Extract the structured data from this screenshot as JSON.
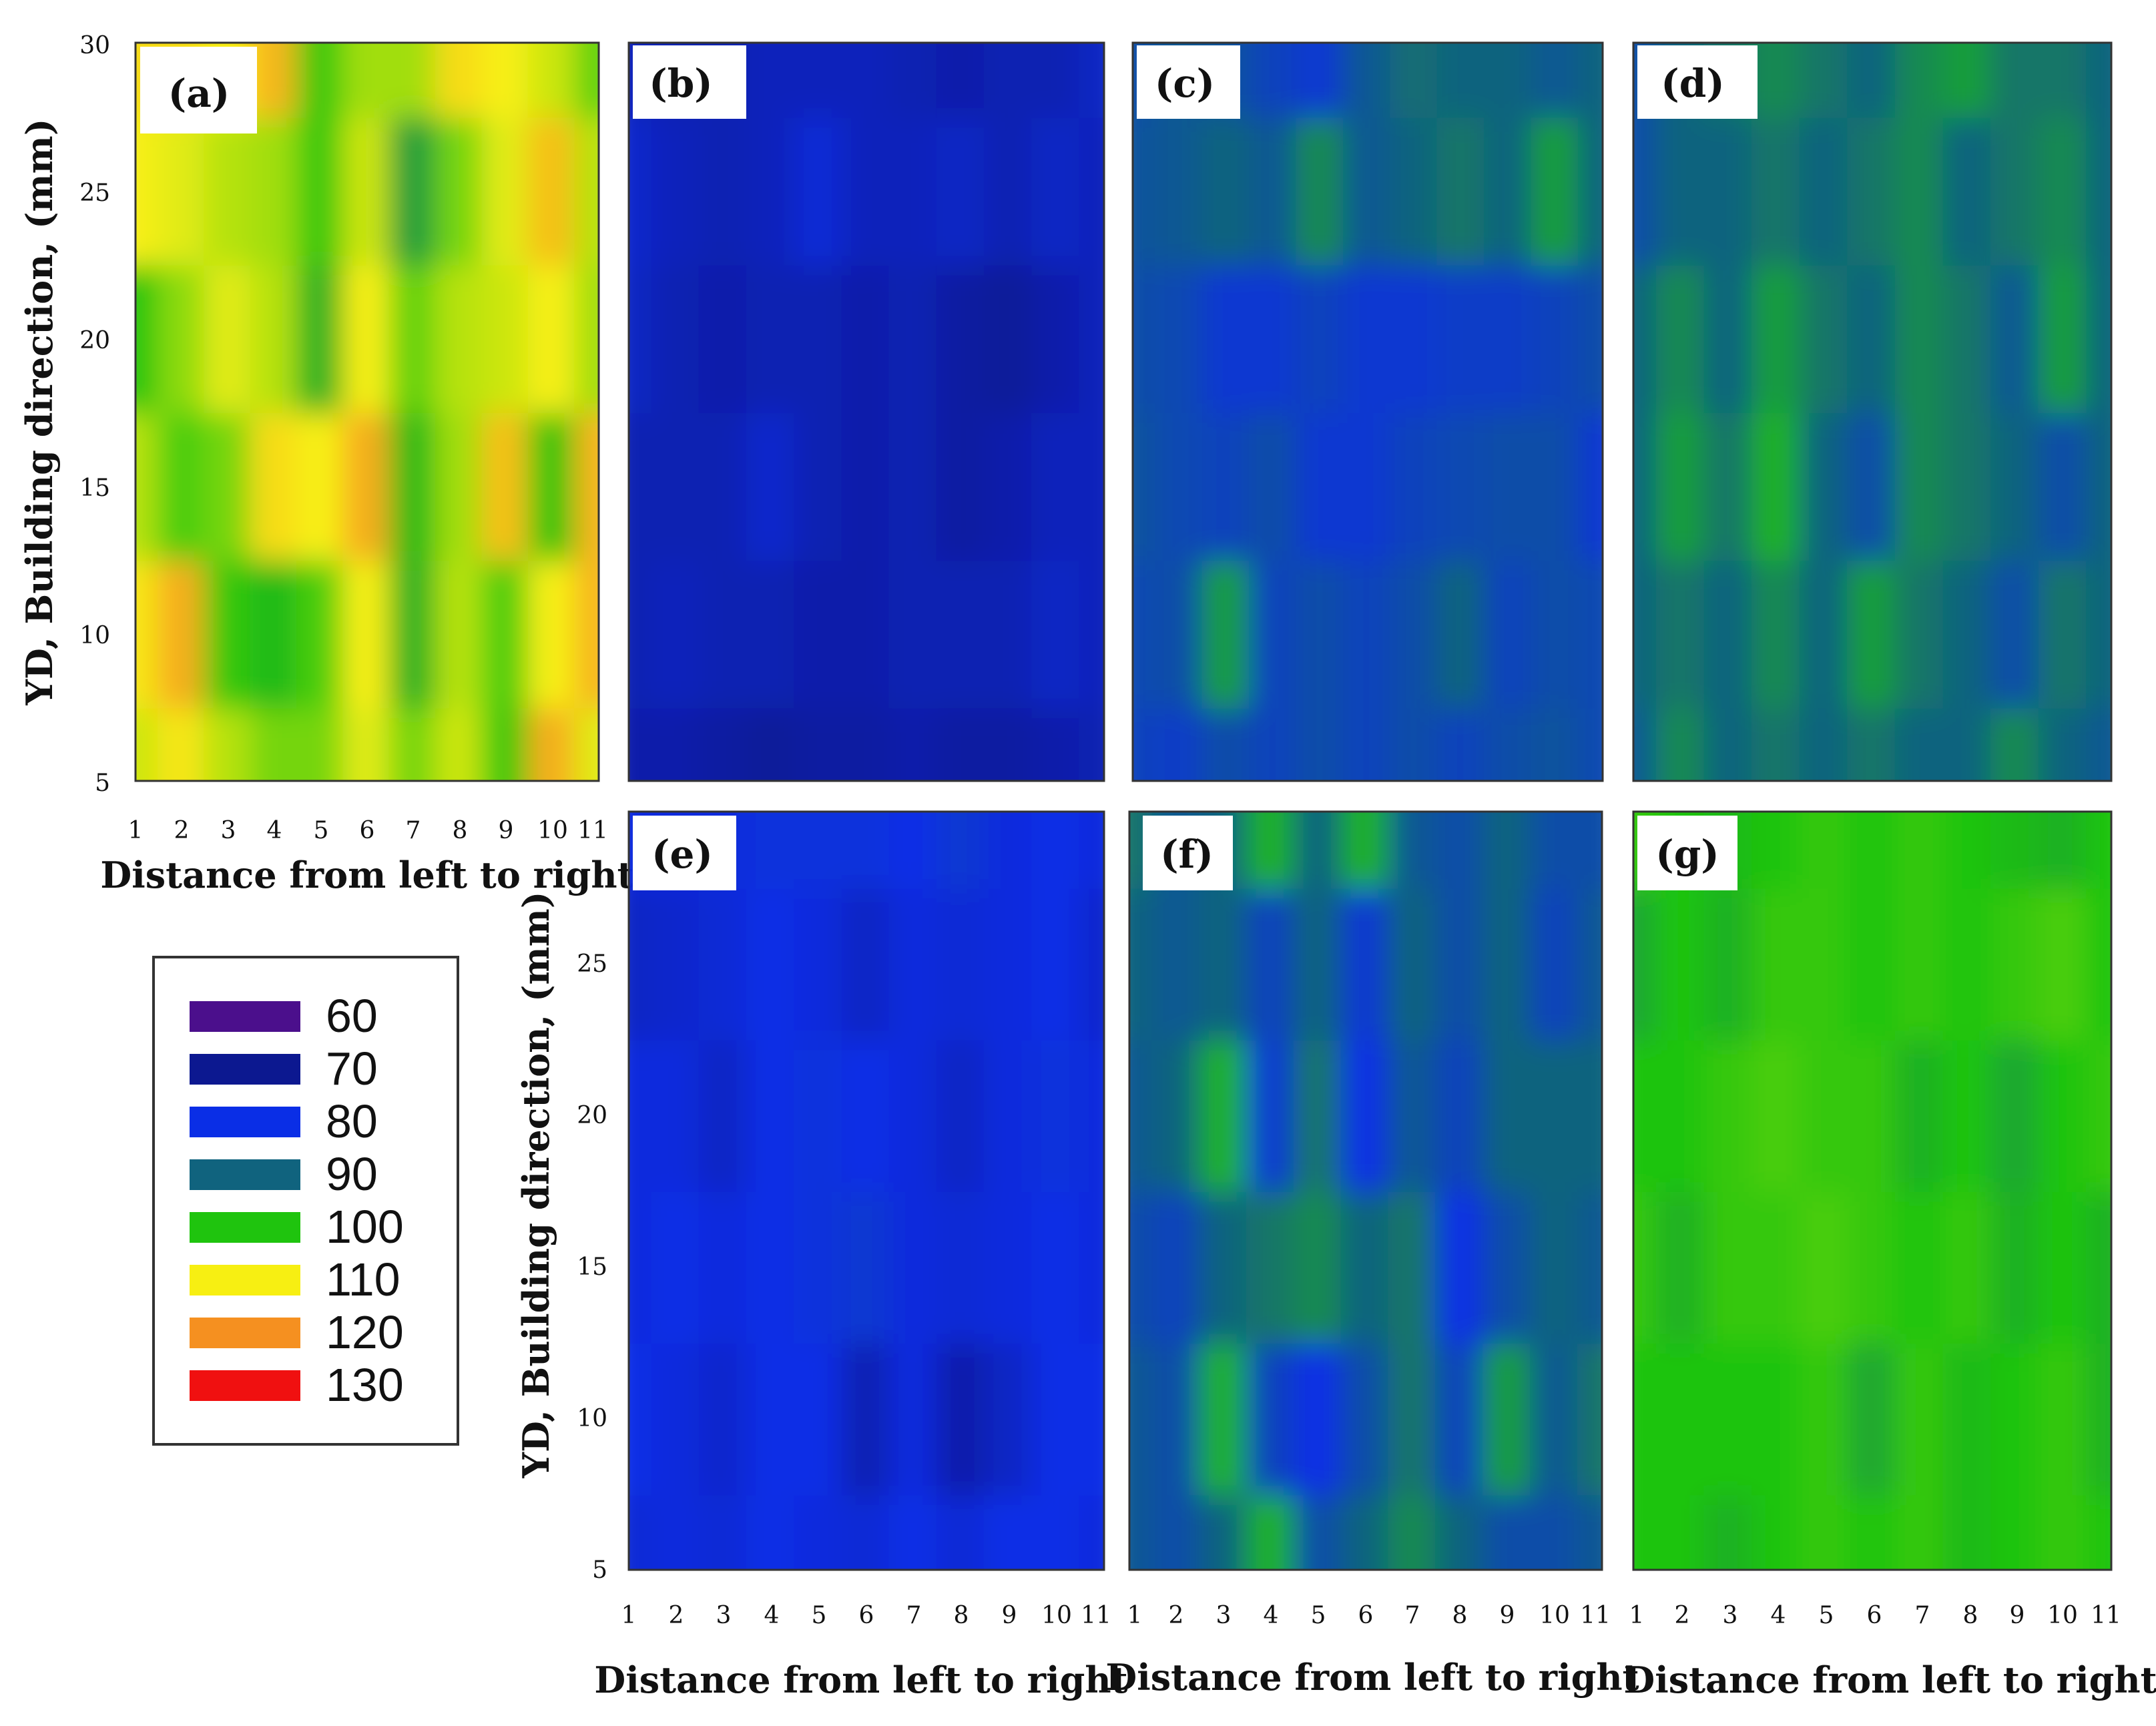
{
  "chart_data": {
    "type": "heatmap",
    "plot_kind": "filled contour maps",
    "colorscale": {
      "levels": [
        60,
        70,
        80,
        90,
        100,
        110,
        120,
        130
      ],
      "colors": [
        "#4b0f8c",
        "#0c1890",
        "#0a2ee6",
        "#10637e",
        "#1fc40e",
        "#f7ef12",
        "#f59020",
        "#f01010"
      ]
    },
    "x": [
      1,
      2,
      3,
      4,
      5,
      6,
      7,
      8,
      9,
      10,
      11
    ],
    "y": [
      5,
      10,
      15,
      20,
      25,
      30
    ],
    "xlabel": "Distance from left to right",
    "ylabel": "YD, Building direction, (mm)",
    "panels": [
      {
        "label": "(a)",
        "rows": [
          [
            108,
            111,
            107,
            104,
            104,
            109,
            104,
            108,
            101,
            117,
            109
          ],
          [
            111,
            117,
            101,
            99,
            102,
            110,
            98,
            107,
            102,
            110,
            116
          ],
          [
            107,
            102,
            104,
            112,
            110,
            117,
            99,
            106,
            115,
            100,
            116
          ],
          [
            100,
            105,
            109,
            107,
            98,
            110,
            103,
            107,
            108,
            110,
            106
          ],
          [
            110,
            109,
            107,
            106,
            101,
            108,
            96,
            104,
            109,
            115,
            107
          ],
          [
            112,
            112,
            110,
            116,
            101,
            106,
            106,
            112,
            110,
            108,
            103
          ]
        ]
      },
      {
        "label": "(b)",
        "rows": [
          [
            73,
            73,
            72,
            71,
            72,
            72,
            73,
            72,
            72,
            73,
            74
          ],
          [
            74,
            75,
            74,
            74,
            73,
            73,
            74,
            74,
            74,
            76,
            75
          ],
          [
            74,
            74,
            74,
            77,
            74,
            73,
            74,
            72,
            73,
            75,
            75
          ],
          [
            76,
            74,
            73,
            74,
            74,
            73,
            74,
            72,
            71,
            73,
            75
          ],
          [
            77,
            75,
            74,
            75,
            78,
            75,
            75,
            76,
            74,
            76,
            75
          ],
          [
            75,
            74,
            74,
            75,
            75,
            75,
            74,
            73,
            74,
            74,
            76
          ]
        ]
      },
      {
        "label": "(c)",
        "rows": [
          [
            84,
            83,
            86,
            84,
            86,
            84,
            86,
            84,
            86,
            87,
            85
          ],
          [
            85,
            86,
            96,
            84,
            86,
            84,
            86,
            90,
            84,
            86,
            85
          ],
          [
            87,
            85,
            84,
            86,
            82,
            82,
            84,
            85,
            86,
            86,
            82
          ],
          [
            86,
            85,
            82,
            82,
            84,
            82,
            82,
            83,
            83,
            84,
            86
          ],
          [
            87,
            88,
            90,
            88,
            94,
            88,
            90,
            92,
            90,
            96,
            90
          ],
          [
            86,
            88,
            87,
            84,
            82,
            88,
            91,
            90,
            90,
            88,
            90
          ]
        ]
      },
      {
        "label": "(d)",
        "rows": [
          [
            88,
            94,
            90,
            92,
            90,
            92,
            90,
            90,
            94,
            90,
            88
          ],
          [
            90,
            92,
            90,
            94,
            90,
            96,
            92,
            90,
            86,
            92,
            90
          ],
          [
            90,
            96,
            92,
            98,
            90,
            86,
            94,
            92,
            90,
            86,
            90
          ],
          [
            90,
            94,
            90,
            96,
            92,
            90,
            94,
            92,
            88,
            96,
            90
          ],
          [
            86,
            90,
            90,
            92,
            90,
            92,
            94,
            90,
            92,
            94,
            90
          ],
          [
            86,
            90,
            92,
            94,
            92,
            90,
            94,
            96,
            92,
            92,
            90
          ]
        ]
      },
      {
        "label": "(e)",
        "rows": [
          [
            78,
            79,
            78,
            80,
            79,
            78,
            80,
            78,
            80,
            80,
            79
          ],
          [
            80,
            79,
            77,
            80,
            80,
            74,
            79,
            73,
            76,
            80,
            80
          ],
          [
            79,
            80,
            79,
            80,
            81,
            82,
            79,
            78,
            79,
            80,
            79
          ],
          [
            79,
            79,
            76,
            80,
            81,
            80,
            79,
            76,
            79,
            81,
            79
          ],
          [
            76,
            77,
            78,
            80,
            79,
            76,
            79,
            78,
            79,
            80,
            77
          ],
          [
            79,
            79,
            79,
            81,
            81,
            81,
            80,
            82,
            79,
            80,
            79
          ]
        ]
      },
      {
        "label": "(f)",
        "rows": [
          [
            88,
            86,
            90,
            98,
            86,
            90,
            94,
            90,
            86,
            86,
            88
          ],
          [
            88,
            86,
            98,
            84,
            80,
            86,
            92,
            84,
            96,
            88,
            92
          ],
          [
            86,
            84,
            90,
            92,
            94,
            90,
            92,
            80,
            86,
            90,
            88
          ],
          [
            88,
            90,
            98,
            82,
            92,
            80,
            88,
            84,
            90,
            90,
            90
          ],
          [
            90,
            88,
            90,
            84,
            90,
            82,
            90,
            86,
            90,
            84,
            88
          ],
          [
            92,
            88,
            90,
            98,
            90,
            98,
            88,
            86,
            90,
            86,
            86
          ]
        ]
      },
      {
        "label": "(g)",
        "rows": [
          [
            100,
            100,
            98,
            100,
            101,
            100,
            101,
            99,
            100,
            101,
            100
          ],
          [
            100,
            100,
            100,
            100,
            101,
            97,
            101,
            99,
            100,
            101,
            98
          ],
          [
            101,
            98,
            101,
            101,
            102,
            101,
            100,
            101,
            98,
            100,
            98
          ],
          [
            100,
            100,
            101,
            102,
            101,
            101,
            98,
            100,
            97,
            100,
            101
          ],
          [
            97,
            100,
            98,
            101,
            101,
            100,
            101,
            100,
            101,
            102,
            100
          ],
          [
            101,
            100,
            99,
            100,
            101,
            100,
            101,
            100,
            99,
            98,
            100
          ]
        ]
      }
    ]
  }
}
